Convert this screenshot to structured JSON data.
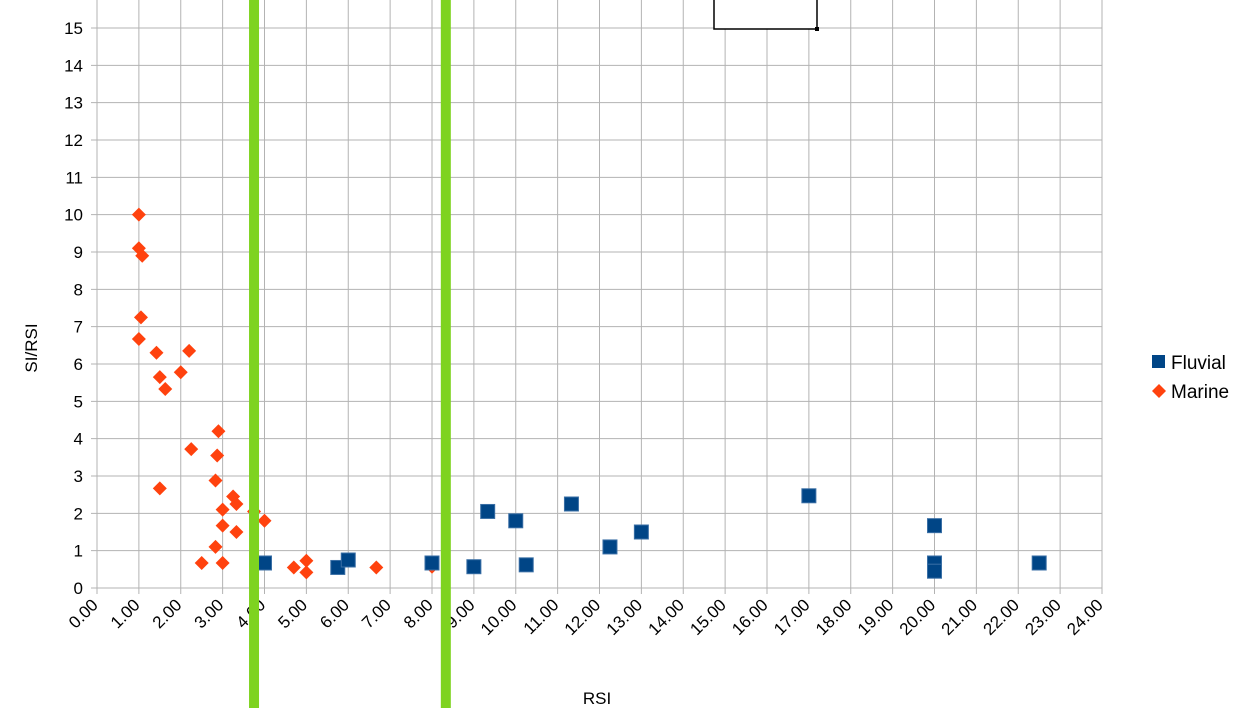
{
  "chart_data": {
    "type": "scatter",
    "xlabel": "RSI",
    "ylabel": "SI/RSI",
    "xlim": [
      0,
      24
    ],
    "ylim": [
      0,
      15
    ],
    "x_tick_labels": [
      "0.00",
      "1.00",
      "2.00",
      "3.00",
      "4.00",
      "5.00",
      "6.00",
      "7.00",
      "8.00",
      "9.00",
      "10.00",
      "11.00",
      "12.00",
      "13.00",
      "14.00",
      "15.00",
      "16.00",
      "17.00",
      "18.00",
      "19.00",
      "20.00",
      "21.00",
      "22.00",
      "23.00",
      "24.00"
    ],
    "y_tick_labels": [
      "0",
      "1",
      "2",
      "3",
      "4",
      "5",
      "6",
      "7",
      "8",
      "9",
      "10",
      "11",
      "12",
      "13",
      "14",
      "15"
    ],
    "grid": true,
    "legend_position": "right",
    "series": [
      {
        "name": "Fluvial",
        "marker": "square",
        "color": "#004586",
        "points": [
          [
            4.0,
            0.67
          ],
          [
            5.75,
            0.55
          ],
          [
            6.0,
            0.75
          ],
          [
            8.0,
            0.67
          ],
          [
            9.0,
            0.57
          ],
          [
            9.33,
            2.05
          ],
          [
            10.0,
            1.8
          ],
          [
            10.25,
            0.62
          ],
          [
            11.33,
            2.25
          ],
          [
            12.25,
            1.1
          ],
          [
            13.0,
            1.5
          ],
          [
            17.0,
            2.47
          ],
          [
            20.0,
            1.67
          ],
          [
            20.0,
            0.67
          ],
          [
            20.0,
            0.45
          ],
          [
            22.5,
            0.67
          ]
        ]
      },
      {
        "name": "Marine",
        "marker": "diamond",
        "color": "#ff420e",
        "points": [
          [
            1.0,
            10.0
          ],
          [
            1.0,
            9.1
          ],
          [
            1.08,
            8.9
          ],
          [
            1.05,
            7.25
          ],
          [
            1.0,
            6.67
          ],
          [
            1.42,
            6.3
          ],
          [
            1.5,
            5.65
          ],
          [
            1.63,
            5.33
          ],
          [
            2.0,
            5.78
          ],
          [
            2.2,
            6.35
          ],
          [
            1.5,
            2.67
          ],
          [
            2.25,
            3.72
          ],
          [
            2.9,
            4.2
          ],
          [
            2.87,
            3.55
          ],
          [
            2.83,
            2.88
          ],
          [
            3.25,
            2.45
          ],
          [
            3.33,
            2.25
          ],
          [
            3.0,
            2.1
          ],
          [
            3.0,
            1.67
          ],
          [
            3.33,
            1.5
          ],
          [
            2.83,
            1.1
          ],
          [
            2.5,
            0.67
          ],
          [
            3.0,
            0.67
          ],
          [
            3.75,
            2.05
          ],
          [
            4.0,
            1.8
          ],
          [
            4.7,
            0.55
          ],
          [
            5.0,
            0.42
          ],
          [
            5.0,
            0.73
          ],
          [
            6.67,
            0.55
          ],
          [
            8.0,
            0.57
          ]
        ]
      }
    ],
    "vertical_markers": {
      "color": "#7ed320",
      "x": [
        3.75,
        8.33
      ]
    }
  }
}
